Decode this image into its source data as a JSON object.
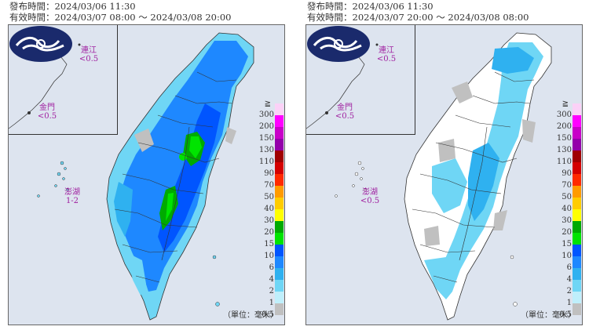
{
  "labels": {
    "issue": "發布時間：2024/03/06 11:30",
    "unit": "（單位：毫米）"
  },
  "panels": [
    {
      "valid": "有效時間：2024/03/07 08:00 ～ 2024/03/08 20:00",
      "matsu_name": "連江",
      "matsu_value": "<0.5",
      "kinmen_name": "金門",
      "kinmen_value": "<0.5",
      "penghu_name": "澎湖",
      "penghu_value": "1-2"
    },
    {
      "valid": "有效時間：2024/03/07 20:00 ～ 2024/03/08 08:00",
      "matsu_name": "連江",
      "matsu_value": "<0.5",
      "kinmen_name": "金門",
      "kinmen_value": "<0.5",
      "penghu_name": "澎湖",
      "penghu_value": "<0.5"
    }
  ],
  "legend": [
    {
      "label": "300",
      "color": "#fbd1f7"
    },
    {
      "label": "200",
      "color": "#ff00ff"
    },
    {
      "label": "150",
      "color": "#c800c8"
    },
    {
      "label": "130",
      "color": "#9400aa"
    },
    {
      "label": "110",
      "color": "#a00000"
    },
    {
      "label": "90",
      "color": "#d40000"
    },
    {
      "label": "70",
      "color": "#ff2a00"
    },
    {
      "label": "50",
      "color": "#ff9b00"
    },
    {
      "label": "40",
      "color": "#ffcc00"
    },
    {
      "label": "30",
      "color": "#ffff00"
    },
    {
      "label": "20",
      "color": "#00aa00"
    },
    {
      "label": "15",
      "color": "#00e400"
    },
    {
      "label": "10",
      "color": "#0055ff"
    },
    {
      "label": "6",
      "color": "#1e88ff"
    },
    {
      "label": "4",
      "color": "#2fb1f0"
    },
    {
      "label": "2",
      "color": "#6fd6f5"
    },
    {
      "label": "1",
      "color": "#bfeffb"
    },
    {
      "label": "0.5",
      "color": "#c0c0c0"
    }
  ],
  "legend_top_symbol": "≧"
}
